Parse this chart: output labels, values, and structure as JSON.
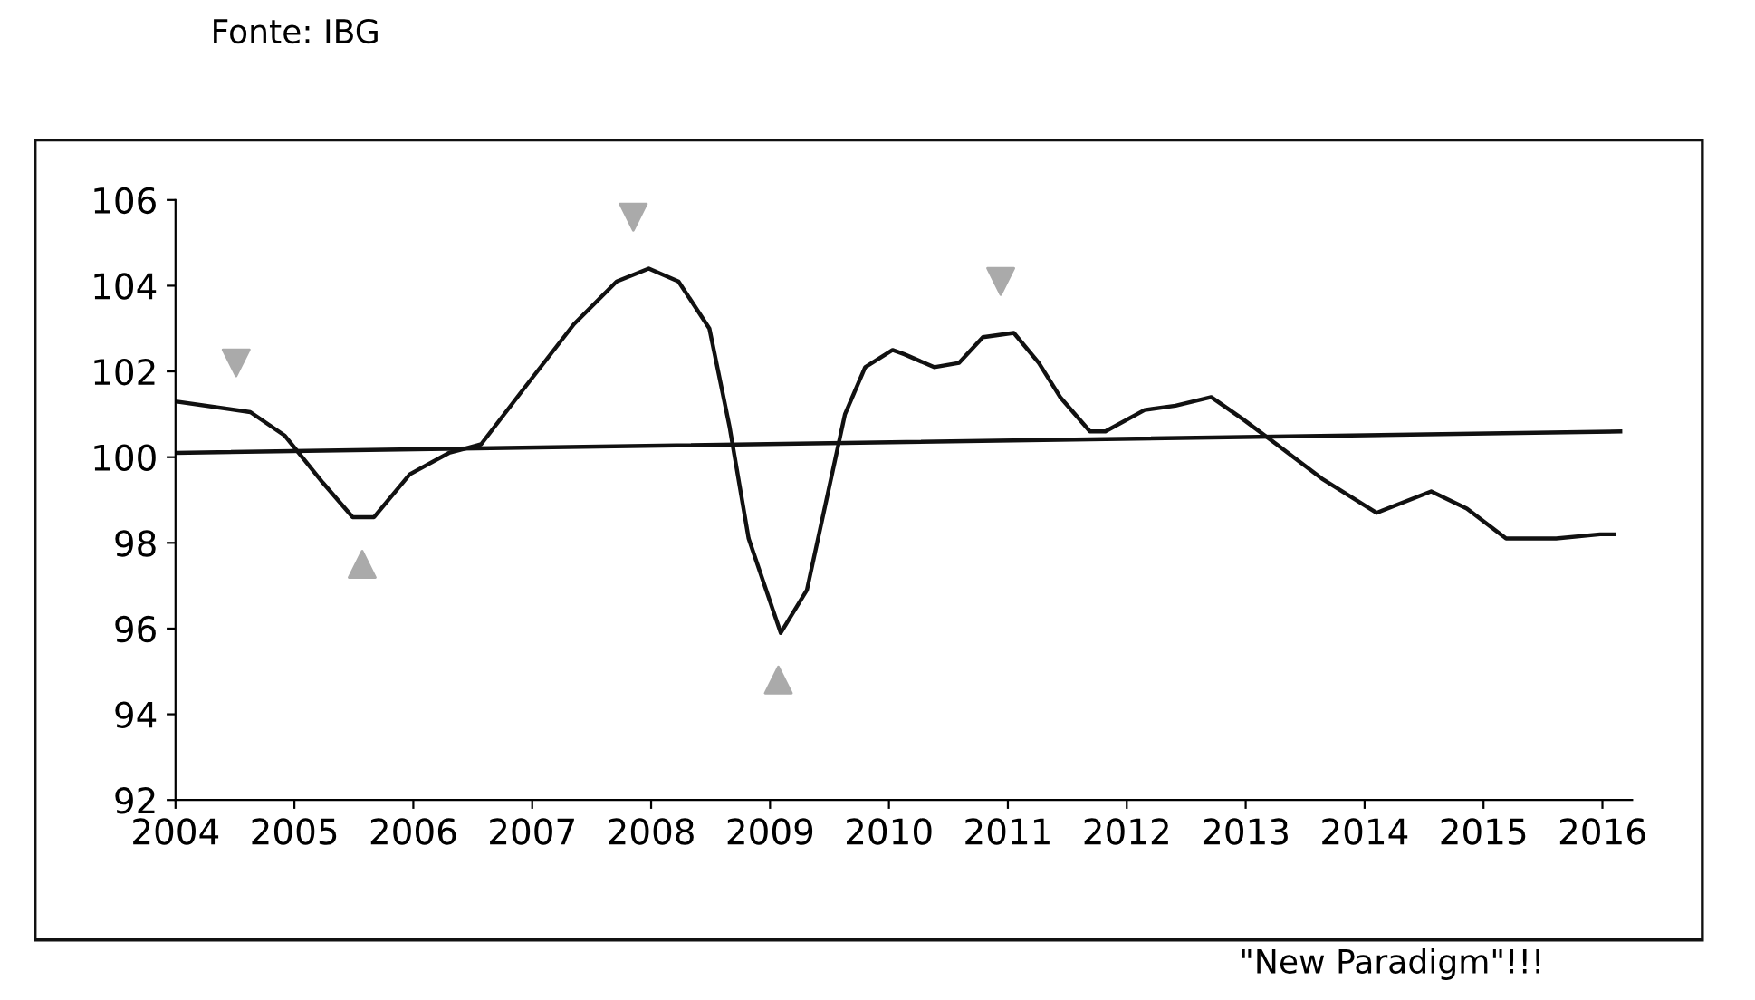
{
  "chart_data": {
    "type": "line",
    "xlim": [
      2004,
      2016.25
    ],
    "xticks": [
      2004,
      2005,
      2006,
      2007,
      2008,
      2009,
      2010,
      2011,
      2012,
      2013,
      2014,
      2015,
      2016
    ],
    "ylim": [
      92,
      106
    ],
    "yticks": [
      92,
      94,
      96,
      98,
      100,
      102,
      104,
      106
    ],
    "grid": false,
    "legend": false,
    "marker": "none",
    "line_style": "solid",
    "annotations": [
      "Fonte: IBG",
      "\"New Paradigm\"!!!"
    ],
    "series": [
      {
        "color": "#111111",
        "x": [
          2004.0,
          2004.63,
          2004.92,
          2005.24,
          2005.49,
          2005.67,
          2005.97,
          2006.3,
          2006.57,
          2006.93,
          2007.35,
          2007.71,
          2007.98,
          2008.23,
          2008.49,
          2008.66,
          2008.82,
          2009.09,
          2009.31,
          2009.63,
          2009.8,
          2010.03,
          2010.13,
          2010.38,
          2010.59,
          2010.79,
          2011.05,
          2011.26,
          2011.44,
          2011.69,
          2011.82,
          2012.15,
          2012.41,
          2012.71,
          2012.97,
          2013.26,
          2013.64,
          2014.1,
          2014.56,
          2014.86,
          2015.19,
          2015.61,
          2015.98,
          2016.1
        ],
        "values": [
          101.3,
          101.05,
          100.5,
          99.4,
          98.6,
          98.6,
          99.6,
          100.1,
          100.3,
          101.6,
          103.1,
          104.1,
          104.4,
          104.1,
          103.0,
          100.7,
          98.1,
          95.9,
          96.9,
          101.0,
          102.1,
          102.5,
          102.4,
          102.1,
          102.2,
          102.8,
          102.9,
          102.2,
          101.4,
          100.6,
          100.6,
          101.1,
          101.2,
          101.4,
          100.9,
          100.3,
          99.5,
          98.7,
          99.2,
          98.8,
          98.1,
          98.1,
          98.2,
          98.2
        ]
      },
      {
        "color": "#111111",
        "x": [
          2004.0,
          2016.15
        ],
        "values": [
          100.1,
          100.6
        ]
      },
      {
        "type": "scatter",
        "color": "#aaaaaa",
        "marker": "triangle_down",
        "x": [
          2004.51,
          2007.85,
          2010.94
        ],
        "values": [
          102.2,
          105.6,
          104.1
        ]
      },
      {
        "type": "scatter",
        "color": "#aaaaaa",
        "marker": "triangle",
        "x": [
          2005.57,
          2009.07
        ],
        "values": [
          97.5,
          94.8
        ]
      }
    ]
  }
}
